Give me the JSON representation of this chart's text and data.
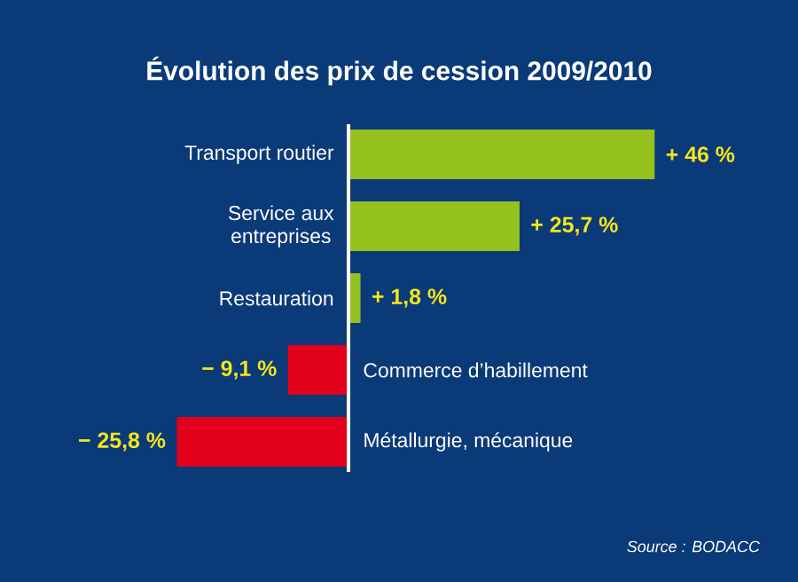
{
  "chart_data": {
    "type": "bar",
    "orientation": "horizontal",
    "title": "Évolution des prix de cession 2009/2010",
    "categories": [
      "Transport routier",
      "Service aux entreprises",
      "Restauration",
      "Commerce d’habillement",
      "Métallurgie, mécanique"
    ],
    "values": [
      46,
      25.7,
      1.8,
      -9.1,
      -25.8
    ],
    "value_labels": [
      "+ 46 %",
      "+ 25,7 %",
      "+ 1,8 %",
      "− 9,1 %",
      "− 25,8 %"
    ],
    "colors": [
      "#95c11f",
      "#95c11f",
      "#95c11f",
      "#e2001a",
      "#e2001a"
    ],
    "annotations": [
      "Source : BODACC"
    ]
  }
}
